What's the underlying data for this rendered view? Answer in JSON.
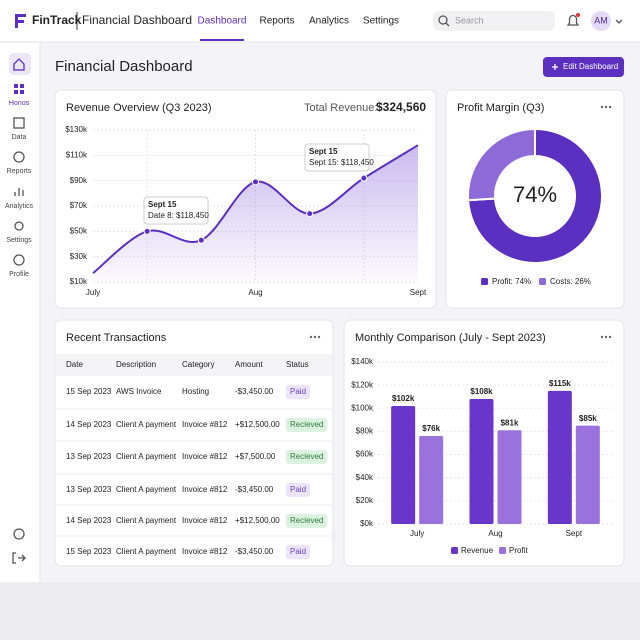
{
  "header": {
    "logo": "FinTrack",
    "title": "Financial Dashboard",
    "nav": [
      "Dashboard",
      "Reports",
      "Analytics",
      "Settings"
    ],
    "search_placeholder": "Search",
    "avatar": "AM"
  },
  "sidebar": {
    "items": [
      "Honos",
      "Data",
      "Reports",
      "Analytics",
      "Settings",
      "Profile"
    ]
  },
  "page": {
    "title": "Financial Dashboard",
    "button": "Edit Dashboard"
  },
  "chart_data": [
    {
      "type": "line",
      "title": "Revenue Overview (Q3 2023)",
      "total_label": "Total Revenue:",
      "total_value": "$324,560",
      "categories": [
        "July",
        null,
        null,
        "Aug",
        null,
        null,
        "Sept"
      ],
      "values": [
        17,
        50,
        43,
        89,
        64,
        92,
        118
      ],
      "color": "#5b2fc0",
      "ylim": [
        10,
        130
      ],
      "yticks": [
        {
          "value": 10,
          "label": "$10k"
        },
        {
          "value": 30,
          "label": "$30k"
        },
        {
          "value": 50,
          "label": "$50k"
        },
        {
          "value": 70,
          "label": "$70k"
        },
        {
          "value": 90,
          "label": "$90k"
        },
        {
          "value": 110,
          "label": "$110k"
        },
        {
          "value": 130,
          "label": "$130k"
        }
      ],
      "grid": true,
      "annotations": [
        {
          "title": "Sept 15",
          "text": "Date 8: $118,450"
        },
        {
          "title": "Sept 15",
          "text": "Sept 15: $118,450"
        }
      ]
    },
    {
      "type": "donut",
      "title": "Profit Margin (Q3)",
      "center_label": "74%",
      "categories": [
        "Profit: 74%",
        "Costs: 26%"
      ],
      "values": [
        74,
        26
      ],
      "colors": [
        "#5b2fc0",
        "#8e6ad8"
      ]
    },
    {
      "type": "bar",
      "title": "Monthly Comparison (July - Sept 2023)",
      "categories": [
        "July",
        "Aug",
        "Sept"
      ],
      "series": [
        {
          "name": "Revenue",
          "color": "#6a35c9",
          "values": [
            102,
            108,
            115
          ],
          "value_labels": [
            "$102k",
            "$108k",
            "$115k"
          ]
        },
        {
          "name": "Profit",
          "color": "#9a72dd",
          "values": [
            76,
            81,
            85
          ],
          "value_labels": [
            "$76k",
            "$81k",
            "$85k"
          ]
        }
      ],
      "ylim": [
        0,
        140
      ],
      "yticks": [
        {
          "value": 0,
          "label": "$0k"
        },
        {
          "value": 20,
          "label": "$20k"
        },
        {
          "value": 40,
          "label": "$40k"
        },
        {
          "value": 60,
          "label": "$60k"
        },
        {
          "value": 80,
          "label": "$80k"
        },
        {
          "value": 100,
          "label": "$100k"
        },
        {
          "value": 120,
          "label": "$120k"
        },
        {
          "value": 140,
          "label": "$140k"
        }
      ],
      "grid": true
    }
  ],
  "transactions": {
    "title": "Recent Transactions",
    "columns": [
      "Date",
      "Description",
      "Category",
      "Amount",
      "Status"
    ],
    "rows": [
      [
        "15 Sep 2023",
        "AWS Invoice",
        "Hosting",
        "-$3,450.00",
        "Paid"
      ],
      [
        "14 Sep 2023",
        "Client A payment",
        "Invoice #812",
        "+$12,500.00",
        "Recieved"
      ],
      [
        "13 Sep 2023",
        "Client A payment",
        "Invoice #812",
        "+$7,500.00",
        "Recieved"
      ],
      [
        "13 Sep 2023",
        "Client A payment",
        "Invoice #812",
        "-$3,450.00",
        "Paid"
      ],
      [
        "14 Sep 2023",
        "Client A payment",
        "Invoice #812",
        "+$12,500.00",
        "Recieved"
      ],
      [
        "15 Sep 2023",
        "Client A payment",
        "Invoice #812",
        "-$3,450.00",
        "Paid"
      ]
    ],
    "status_colors": {
      "Paid": [
        "#ece4fb",
        "#6a3fc6"
      ],
      "Recieved": [
        "#dcf1e0",
        "#2e7d3e"
      ]
    }
  }
}
